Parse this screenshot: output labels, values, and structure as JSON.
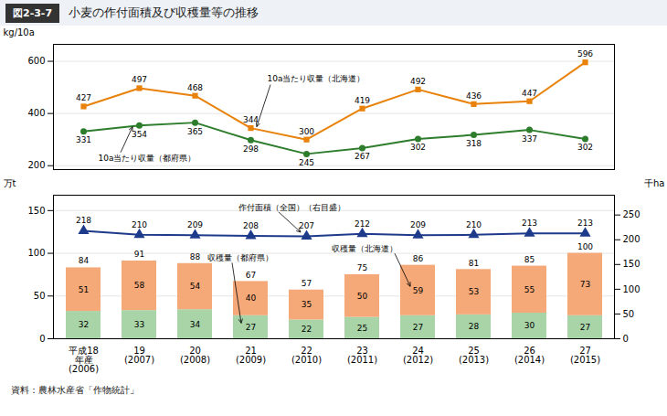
{
  "chart_data": [
    {
      "type": "line",
      "fig_label": "図2-3-7",
      "title": "小麦の作付面積及び収穫量等の推移",
      "categories": [
        "平成18\n年産\n(2006)",
        "19\n(2007)",
        "20\n(2008)",
        "21\n(2009)",
        "22\n(2010)",
        "23\n(2011)",
        "24\n(2012)",
        "25\n(2013)",
        "26\n(2014)",
        "27\n(2015)"
      ],
      "series": [
        {
          "name": "10a当たり収量（北海道）",
          "color": "#E8820A",
          "marker": "square",
          "values": [
            427,
            497,
            468,
            344,
            300,
            419,
            492,
            436,
            447,
            596
          ]
        },
        {
          "name": "10a当たり収量（都府県）",
          "color": "#2D7D2D",
          "marker": "circle",
          "values": [
            331,
            354,
            365,
            298,
            245,
            267,
            302,
            318,
            337,
            302
          ]
        }
      ],
      "ylabel": "kg/10a",
      "ylim": [
        185,
        665
      ],
      "yticks": [
        200,
        400,
        600
      ],
      "grid": true,
      "data_labels": true,
      "tick_labels": "y"
    },
    {
      "type": "bar",
      "stacked": true,
      "categories": [
        "平成18\n年産\n(2006)",
        "19\n(2007)",
        "20\n(2008)",
        "21\n(2009)",
        "22\n(2010)",
        "23\n(2011)",
        "24\n(2012)",
        "25\n(2013)",
        "26\n(2014)",
        "27\n(2015)"
      ],
      "series": [
        {
          "name": "収穫量（都府県）",
          "color": "#A8D4A8",
          "values": [
            32,
            33,
            34,
            27,
            22,
            25,
            27,
            28,
            30,
            27
          ]
        },
        {
          "name": "収穫量（北海道）",
          "color": "#F5A878",
          "values": [
            51,
            58,
            54,
            40,
            35,
            50,
            59,
            53,
            55,
            73
          ]
        },
        {
          "name": "作付面積（全国）（右目盛）",
          "type": "line",
          "axis": "y2",
          "color": "#1E3A8A",
          "marker": "triangle",
          "values": [
            218,
            210,
            209,
            208,
            207,
            212,
            209,
            210,
            213,
            213
          ]
        }
      ],
      "totals": [
        84,
        91,
        88,
        67,
        57,
        75,
        86,
        81,
        85,
        100
      ],
      "ylabel": "万t",
      "y2label": "千ha",
      "ylim": [
        0,
        168
      ],
      "yticks": [
        0,
        50,
        100,
        150
      ],
      "y2lim": [
        0,
        290
      ],
      "y2ticks": [
        0,
        50,
        100,
        150,
        200,
        250
      ],
      "grid": true,
      "data_labels": true,
      "source": "資料：農林水産省「作物統計」"
    }
  ]
}
